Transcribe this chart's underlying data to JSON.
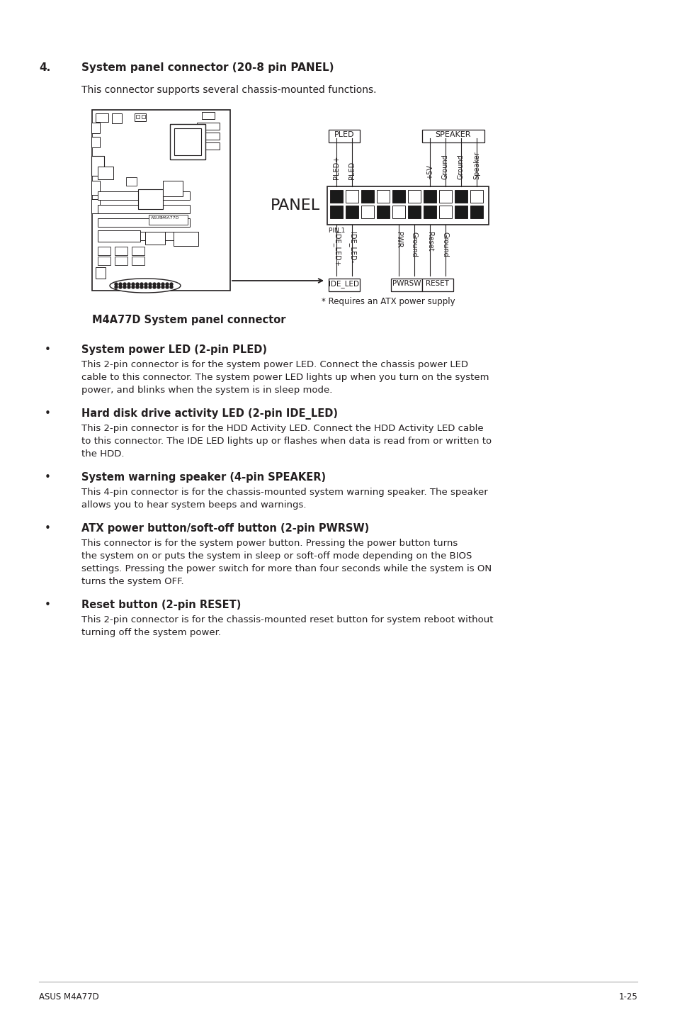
{
  "bg_color": "#ffffff",
  "text_color": "#231f20",
  "footer_text_left": "ASUS M4A77D",
  "footer_text_right": "1-25",
  "section_number": "4.",
  "section_title": "System panel connector (20-8 pin PANEL)",
  "section_desc": "This connector supports several chassis-mounted functions.",
  "diagram_caption": "M4A77D System panel connector",
  "diagram_note": "* Requires an ATX power supply",
  "panel_label": "PANEL",
  "pin1_label": "PIN 1",
  "top_labels_left": [
    "PLED+",
    "PLED-"
  ],
  "top_labels_right": [
    "+5V",
    "Ground",
    "Ground",
    "Speaker"
  ],
  "bottom_labels_left": [
    "IDE_LED+",
    "IDE_LED-"
  ],
  "bottom_labels_right": [
    "PWR",
    "Ground",
    "Reset",
    "Ground"
  ],
  "bullets": [
    {
      "title": "System power LED (2-pin PLED)",
      "body": "This 2-pin connector is for the system power LED. Connect the chassis power LED\ncable to this connector. The system power LED lights up when you turn on the system\npower, and blinks when the system is in sleep mode."
    },
    {
      "title": "Hard disk drive activity LED (2-pin IDE_LED)",
      "body": "This 2-pin connector is for the HDD Activity LED. Connect the HDD Activity LED cable\nto this connector. The IDE LED lights up or flashes when data is read from or written to\nthe HDD."
    },
    {
      "title": "System warning speaker (4-pin SPEAKER)",
      "body": "This 4-pin connector is for the chassis-mounted system warning speaker. The speaker\nallows you to hear system beeps and warnings."
    },
    {
      "title": "ATX power button/soft-off button (2-pin PWRSW)",
      "body": "This connector is for the system power button. Pressing the power button turns\nthe system on or puts the system in sleep or soft-off mode depending on the BIOS\nsettings. Pressing the power switch for more than four seconds while the system is ON\nturns the system OFF."
    },
    {
      "title": "Reset button (2-pin RESET)",
      "body": "This 2-pin connector is for the chassis-mounted reset button for system reboot without\nturning off the system power."
    }
  ]
}
